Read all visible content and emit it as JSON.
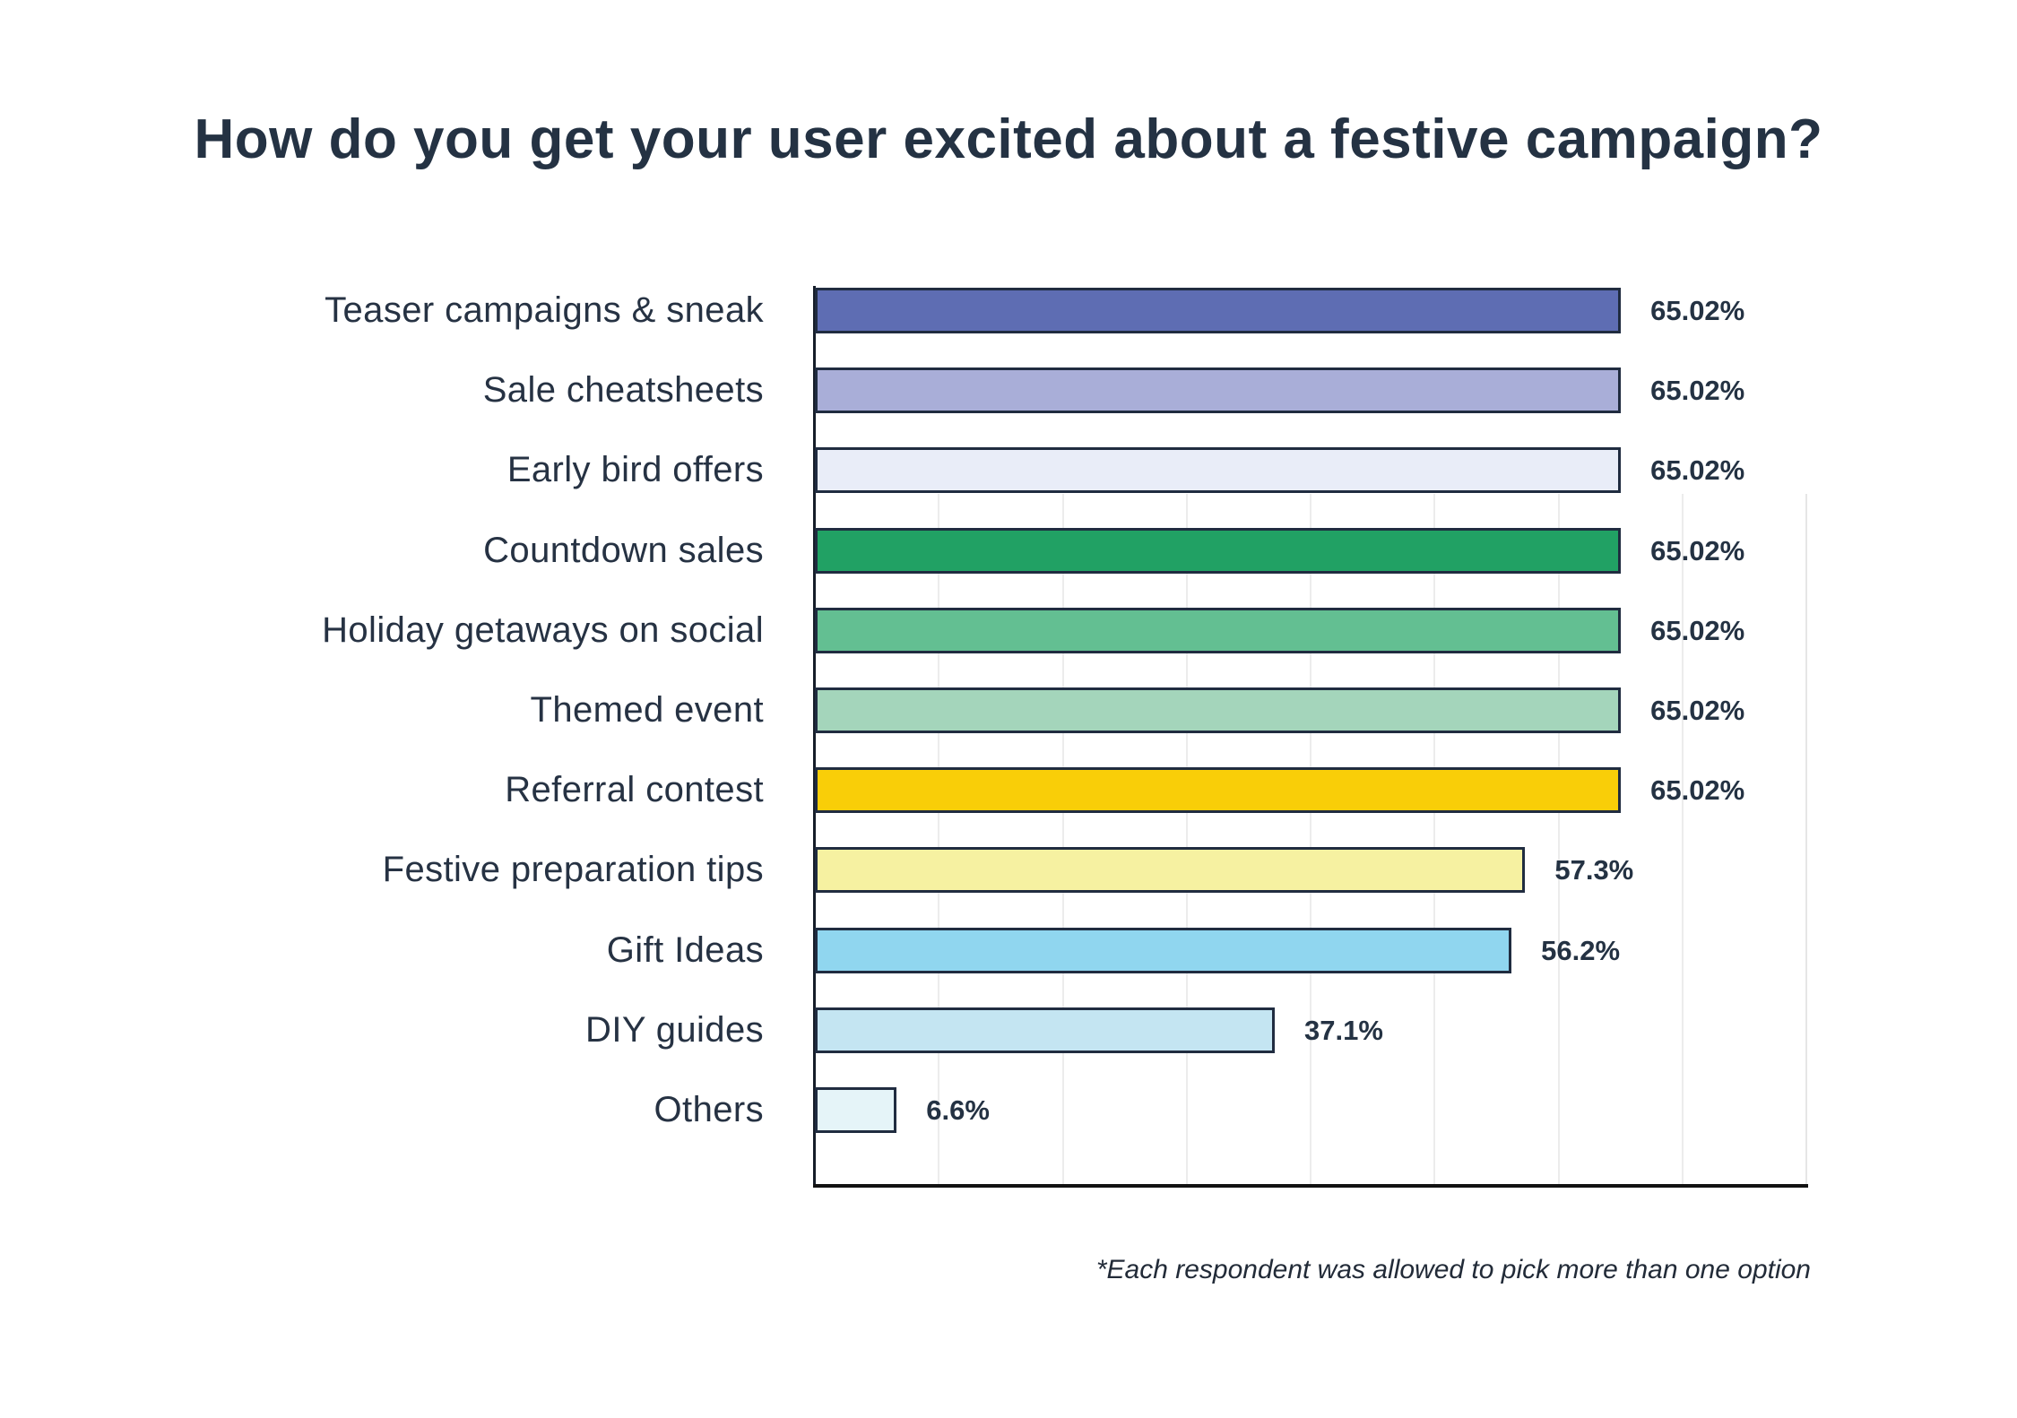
{
  "title": "How do you get your user excited about a festive campaign?",
  "footnote": "*Each respondent was allowed to pick more than one option",
  "colors": {
    "text": "#243243",
    "bar_border": "#202c40",
    "axis": "#161d29",
    "gridline": "#ececec",
    "background": "#ffffff"
  },
  "chart_data": {
    "type": "bar",
    "orientation": "horizontal",
    "title": "How do you get your user excited about a festive campaign?",
    "xlabel": "",
    "ylabel": "",
    "x_unit": "%",
    "xlim": [
      0,
      80
    ],
    "grid": "vertical light gridlines every 10%, drawn only on lower portion of plot",
    "gridline_percents": [
      10,
      20,
      30,
      40,
      50,
      60,
      70,
      80
    ],
    "legend": "none",
    "categories": [
      "Teaser campaigns & sneak",
      "Sale cheatsheets",
      "Early bird offers",
      "Countdown sales",
      "Holiday getaways on social",
      "Themed event",
      "Referral contest",
      "Festive preparation tips",
      "Gift Ideas",
      "DIY guides",
      "Others"
    ],
    "values": [
      65.02,
      65.02,
      65.02,
      65.02,
      65.02,
      65.02,
      65.02,
      57.3,
      56.2,
      37.1,
      6.6
    ],
    "value_labels": [
      "65.02%",
      "65.02%",
      "65.02%",
      "65.02%",
      "65.02%",
      "65.02%",
      "65.02%",
      "57.3%",
      "56.2%",
      "37.1%",
      "6.6%"
    ],
    "bar_colors": [
      "#5e6db3",
      "#a9aed8",
      "#e9edf8",
      "#21a164",
      "#63bf92",
      "#a4d5bb",
      "#f9ce08",
      "#f6f1a1",
      "#90d6ef",
      "#c4e5f2",
      "#e5f4f8"
    ]
  }
}
